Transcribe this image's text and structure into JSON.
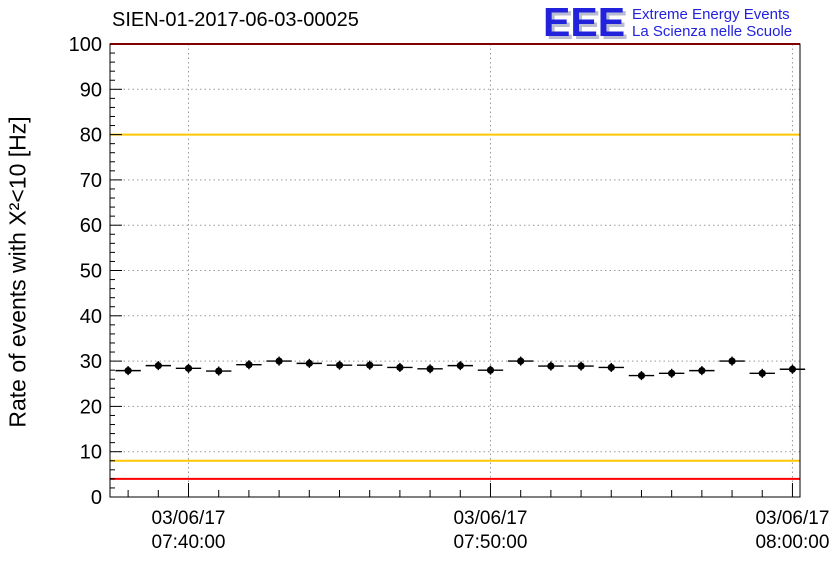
{
  "title": "SIEN-01-2017-06-03-00025",
  "logo": {
    "letters": "EEE",
    "line1": "Extreme Energy Events",
    "line2": "La Scienza nelle Scuole",
    "color": "#2222dd",
    "shadow_color": "#b9bdcf",
    "text_color": "#2222dd"
  },
  "chart_data": {
    "type": "scatter",
    "title": "SIEN-01-2017-06-03-00025",
    "xlabel": "",
    "ylabel": "Rate of events with X²<10 [Hz]",
    "ylim": [
      0,
      100
    ],
    "y_major_ticks": [
      0,
      10,
      20,
      30,
      40,
      50,
      60,
      70,
      80,
      90,
      100
    ],
    "y_minor_step": 2,
    "xlim_minutes": [
      2.4,
      25.25
    ],
    "x_minor_step": 1,
    "grid": true,
    "legend": "none",
    "x_ticks": [
      {
        "minutes": 5,
        "label_date": "03/06/17",
        "label_time": "07:40:00"
      },
      {
        "minutes": 15,
        "label_date": "03/06/17",
        "label_time": "07:50:00"
      },
      {
        "minutes": 25,
        "label_date": "03/06/17",
        "label_time": "08:00:00"
      }
    ],
    "threshold_lines": [
      {
        "y": 100,
        "color": "#ff0000"
      },
      {
        "y": 80,
        "color": "#ffc800"
      },
      {
        "y": 8,
        "color": "#ffc800"
      },
      {
        "y": 4,
        "color": "#ff0000"
      }
    ],
    "x_error_minutes": 0.42,
    "y_error_hz": 1.0,
    "colors": {
      "grid": "#999999",
      "frame": "#000000",
      "marker": "#000000"
    },
    "points": [
      {
        "time": "07:38:00",
        "minutes": 3,
        "rate": 27.9
      },
      {
        "time": "07:39:00",
        "minutes": 4,
        "rate": 29.0
      },
      {
        "time": "07:40:00",
        "minutes": 5,
        "rate": 28.4
      },
      {
        "time": "07:41:00",
        "minutes": 6,
        "rate": 27.8
      },
      {
        "time": "07:42:00",
        "minutes": 7,
        "rate": 29.2
      },
      {
        "time": "07:43:00",
        "minutes": 8,
        "rate": 30.0
      },
      {
        "time": "07:44:00",
        "minutes": 9,
        "rate": 29.5
      },
      {
        "time": "07:45:00",
        "minutes": 10,
        "rate": 29.1
      },
      {
        "time": "07:46:00",
        "minutes": 11,
        "rate": 29.1
      },
      {
        "time": "07:47:00",
        "minutes": 12,
        "rate": 28.6
      },
      {
        "time": "07:48:00",
        "minutes": 13,
        "rate": 28.3
      },
      {
        "time": "07:49:00",
        "minutes": 14,
        "rate": 29.0
      },
      {
        "time": "07:50:00",
        "minutes": 15,
        "rate": 28.0
      },
      {
        "time": "07:51:00",
        "minutes": 16,
        "rate": 30.0
      },
      {
        "time": "07:52:00",
        "minutes": 17,
        "rate": 28.9
      },
      {
        "time": "07:53:00",
        "minutes": 18,
        "rate": 28.9
      },
      {
        "time": "07:54:00",
        "minutes": 19,
        "rate": 28.6
      },
      {
        "time": "07:55:00",
        "minutes": 20,
        "rate": 26.8
      },
      {
        "time": "07:56:00",
        "minutes": 21,
        "rate": 27.3
      },
      {
        "time": "07:57:00",
        "minutes": 22,
        "rate": 27.9
      },
      {
        "time": "07:58:00",
        "minutes": 23,
        "rate": 30.0
      },
      {
        "time": "07:59:00",
        "minutes": 24,
        "rate": 27.3
      },
      {
        "time": "08:00:00",
        "minutes": 25,
        "rate": 28.2
      }
    ]
  }
}
